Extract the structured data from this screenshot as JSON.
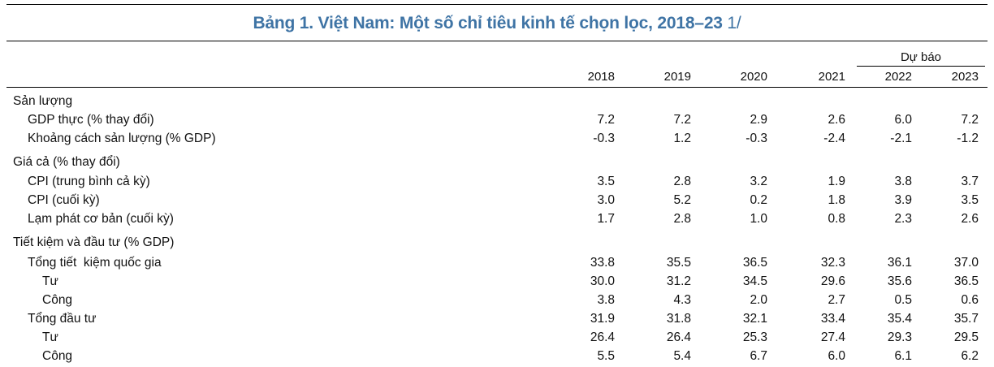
{
  "table": {
    "title_bold": "Bảng 1. Việt Nam: Một số chỉ tiêu kinh tế chọn lọc, 2018–23",
    "title_note": " 1/",
    "forecast_label": "Dự báo",
    "years": [
      "2018",
      "2019",
      "2020",
      "2021",
      "2022",
      "2023"
    ],
    "rows": [
      {
        "label": "Sản lượng",
        "indent": 0,
        "values": []
      },
      {
        "label": "GDP thực (% thay đổi)",
        "indent": 1,
        "values": [
          "7.2",
          "7.2",
          "2.9",
          "2.6",
          "6.0",
          "7.2"
        ]
      },
      {
        "label": "Khoảng cách sản lượng (% GDP)",
        "indent": 1,
        "values": [
          "-0.3",
          "1.2",
          "-0.3",
          "-2.4",
          "-2.1",
          "-1.2"
        ]
      },
      {
        "label": "Giá cả (% thay đổi)",
        "indent": 0,
        "values": []
      },
      {
        "label": "CPI (trung bình cả kỳ)",
        "indent": 1,
        "values": [
          "3.5",
          "2.8",
          "3.2",
          "1.9",
          "3.8",
          "3.7"
        ]
      },
      {
        "label": "CPI (cuối kỳ)",
        "indent": 1,
        "values": [
          "3.0",
          "5.2",
          "0.2",
          "1.8",
          "3.9",
          "3.5"
        ]
      },
      {
        "label": "Lạm phát cơ bản (cuối kỳ)",
        "indent": 1,
        "values": [
          "1.7",
          "2.8",
          "1.0",
          "0.8",
          "2.3",
          "2.6"
        ]
      },
      {
        "label": "Tiết kiệm và đầu tư (% GDP)",
        "indent": 0,
        "values": []
      },
      {
        "label": "Tổng tiết  kiệm quốc gia",
        "indent": 1,
        "values": [
          "33.8",
          "35.5",
          "36.5",
          "32.3",
          "36.1",
          "37.0"
        ]
      },
      {
        "label": "Tư",
        "indent": 2,
        "values": [
          "30.0",
          "31.2",
          "34.5",
          "29.6",
          "35.6",
          "36.5"
        ]
      },
      {
        "label": "Công",
        "indent": 2,
        "values": [
          "3.8",
          "4.3",
          "2.0",
          "2.7",
          "0.5",
          "0.6"
        ]
      },
      {
        "label": "Tổng đầu tư",
        "indent": 1,
        "values": [
          "31.9",
          "31.8",
          "32.1",
          "33.4",
          "35.4",
          "35.7"
        ]
      },
      {
        "label": "Tư",
        "indent": 2,
        "values": [
          "26.4",
          "26.4",
          "25.3",
          "27.4",
          "29.3",
          "29.5"
        ]
      },
      {
        "label": "Công",
        "indent": 2,
        "values": [
          "5.5",
          "5.4",
          "6.7",
          "6.0",
          "6.1",
          "6.2"
        ]
      }
    ]
  }
}
